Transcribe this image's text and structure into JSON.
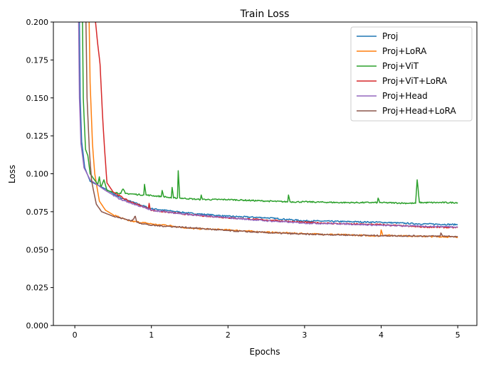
{
  "chart_data": {
    "type": "line",
    "title": "Train Loss",
    "xlabel": "Epochs",
    "ylabel": "Loss",
    "xlim": [
      -0.28,
      5.25
    ],
    "ylim": [
      0,
      0.2
    ],
    "xticks": [
      0,
      1,
      2,
      3,
      4,
      5
    ],
    "xtick_labels": [
      "0",
      "1",
      "2",
      "3",
      "4",
      "5"
    ],
    "yticks": [
      0,
      0.025,
      0.05,
      0.075,
      0.1,
      0.125,
      0.15,
      0.175,
      0.2
    ],
    "ytick_labels": [
      "0.000",
      "0.025",
      "0.050",
      "0.075",
      "0.100",
      "0.125",
      "0.150",
      "0.175",
      "0.200"
    ],
    "grid": false,
    "legend": "top-right",
    "series": [
      {
        "name": "Proj",
        "color": "#1f77b4",
        "points": [
          [
            0.05,
            0.25
          ],
          [
            0.07,
            0.15
          ],
          [
            0.09,
            0.121
          ],
          [
            0.13,
            0.104
          ],
          [
            0.2,
            0.095
          ],
          [
            0.4,
            0.09
          ],
          [
            0.6,
            0.084
          ],
          [
            1.0,
            0.077
          ],
          [
            1.5,
            0.074
          ],
          [
            2.0,
            0.072
          ],
          [
            2.5,
            0.071
          ],
          [
            3.0,
            0.069
          ],
          [
            3.5,
            0.0685
          ],
          [
            4.0,
            0.068
          ],
          [
            4.5,
            0.067
          ],
          [
            5.0,
            0.0665
          ]
        ]
      },
      {
        "name": "Proj+LoRA",
        "color": "#ff7f0e",
        "points": [
          [
            0.17,
            0.25
          ],
          [
            0.2,
            0.16
          ],
          [
            0.23,
            0.12
          ],
          [
            0.26,
            0.1
          ],
          [
            0.32,
            0.082
          ],
          [
            0.4,
            0.076
          ],
          [
            0.5,
            0.073
          ],
          [
            0.7,
            0.069
          ],
          [
            1.0,
            0.067
          ],
          [
            1.13,
            0.066
          ],
          [
            1.14,
            0.0665
          ],
          [
            1.5,
            0.064
          ],
          [
            2.0,
            0.063
          ],
          [
            2.5,
            0.0615
          ],
          [
            3.0,
            0.0605
          ],
          [
            3.5,
            0.0598
          ],
          [
            3.99,
            0.059
          ],
          [
            4.0,
            0.063
          ],
          [
            4.02,
            0.0595
          ],
          [
            4.5,
            0.0588
          ],
          [
            5.0,
            0.0583
          ]
        ]
      },
      {
        "name": "Proj+ViT",
        "color": "#2ca02c",
        "points": [
          [
            0.09,
            0.25
          ],
          [
            0.11,
            0.15
          ],
          [
            0.14,
            0.116
          ],
          [
            0.17,
            0.112
          ],
          [
            0.2,
            0.1
          ],
          [
            0.3,
            0.093
          ],
          [
            0.32,
            0.098
          ],
          [
            0.34,
            0.091
          ],
          [
            0.38,
            0.096
          ],
          [
            0.42,
            0.089
          ],
          [
            0.5,
            0.088
          ],
          [
            0.6,
            0.087
          ],
          [
            0.63,
            0.09
          ],
          [
            0.66,
            0.087
          ],
          [
            0.9,
            0.086
          ],
          [
            0.91,
            0.093
          ],
          [
            0.93,
            0.086
          ],
          [
            1.13,
            0.085
          ],
          [
            1.14,
            0.089
          ],
          [
            1.16,
            0.085
          ],
          [
            1.26,
            0.084
          ],
          [
            1.27,
            0.091
          ],
          [
            1.29,
            0.084
          ],
          [
            1.34,
            0.084
          ],
          [
            1.35,
            0.102
          ],
          [
            1.37,
            0.084
          ],
          [
            1.64,
            0.083
          ],
          [
            1.65,
            0.086
          ],
          [
            1.67,
            0.083
          ],
          [
            2.0,
            0.083
          ],
          [
            2.5,
            0.082
          ],
          [
            2.78,
            0.0815
          ],
          [
            2.79,
            0.086
          ],
          [
            2.81,
            0.0815
          ],
          [
            3.0,
            0.0815
          ],
          [
            3.5,
            0.081
          ],
          [
            3.95,
            0.081
          ],
          [
            3.96,
            0.084
          ],
          [
            3.98,
            0.081
          ],
          [
            4.45,
            0.0805
          ],
          [
            4.47,
            0.096
          ],
          [
            4.5,
            0.081
          ],
          [
            5.0,
            0.081
          ]
        ]
      },
      {
        "name": "Proj+ViT+LoRA",
        "color": "#d62728",
        "points": [
          [
            0.25,
            0.25
          ],
          [
            0.27,
            0.2
          ],
          [
            0.3,
            0.185
          ],
          [
            0.33,
            0.172
          ],
          [
            0.36,
            0.14
          ],
          [
            0.39,
            0.115
          ],
          [
            0.42,
            0.094
          ],
          [
            0.5,
            0.088
          ],
          [
            0.7,
            0.082
          ],
          [
            0.96,
            0.077
          ],
          [
            0.97,
            0.0805
          ],
          [
            0.99,
            0.076
          ],
          [
            1.5,
            0.073
          ],
          [
            2.0,
            0.071
          ],
          [
            2.5,
            0.0695
          ],
          [
            3.0,
            0.068
          ],
          [
            3.5,
            0.067
          ],
          [
            4.0,
            0.0665
          ],
          [
            4.5,
            0.065
          ],
          [
            5.0,
            0.0645
          ]
        ]
      },
      {
        "name": "Proj+Head",
        "color": "#9467bd",
        "points": [
          [
            0.04,
            0.25
          ],
          [
            0.06,
            0.15
          ],
          [
            0.08,
            0.12
          ],
          [
            0.12,
            0.104
          ],
          [
            0.2,
            0.096
          ],
          [
            0.4,
            0.089
          ],
          [
            0.6,
            0.083
          ],
          [
            1.0,
            0.076
          ],
          [
            1.5,
            0.073
          ],
          [
            2.0,
            0.071
          ],
          [
            2.5,
            0.069
          ],
          [
            3.0,
            0.0675
          ],
          [
            3.5,
            0.067
          ],
          [
            4.0,
            0.066
          ],
          [
            4.5,
            0.0655
          ],
          [
            5.0,
            0.065
          ]
        ]
      },
      {
        "name": "Proj+Head+LoRA",
        "color": "#8c564b",
        "points": [
          [
            0.13,
            0.25
          ],
          [
            0.16,
            0.15
          ],
          [
            0.19,
            0.115
          ],
          [
            0.22,
            0.095
          ],
          [
            0.28,
            0.08
          ],
          [
            0.35,
            0.075
          ],
          [
            0.5,
            0.072
          ],
          [
            0.75,
            0.069
          ],
          [
            0.79,
            0.072
          ],
          [
            0.81,
            0.068
          ],
          [
            1.0,
            0.066
          ],
          [
            1.5,
            0.0645
          ],
          [
            2.0,
            0.0625
          ],
          [
            2.5,
            0.0612
          ],
          [
            3.0,
            0.0602
          ],
          [
            3.5,
            0.0597
          ],
          [
            4.0,
            0.0592
          ],
          [
            4.5,
            0.059
          ],
          [
            4.77,
            0.0588
          ],
          [
            4.78,
            0.061
          ],
          [
            4.8,
            0.059
          ],
          [
            5.0,
            0.0585
          ]
        ]
      }
    ]
  }
}
